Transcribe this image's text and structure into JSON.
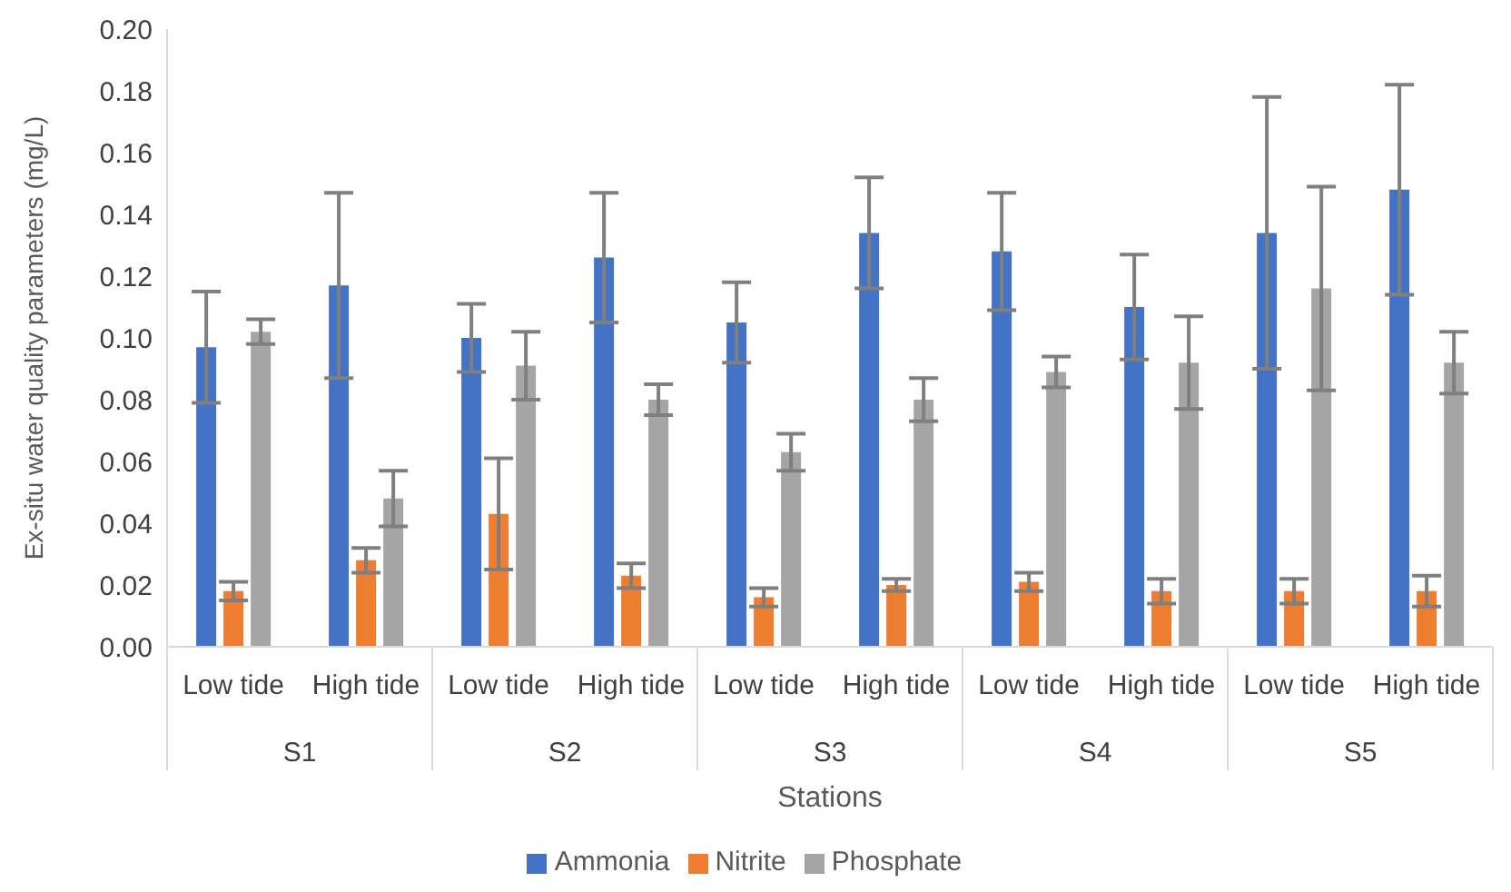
{
  "chart_data": {
    "type": "bar",
    "xlabel": "Stations",
    "ylabel": "Ex-situ water quality parameters  (mg/L)",
    "categories": [
      "Low tide",
      "High tide",
      "Low tide",
      "High tide",
      "Low tide",
      "High tide",
      "Low tide",
      "High tide",
      "Low tide",
      "High tide"
    ],
    "annotations": [
      "S1",
      "S2",
      "S3",
      "S4",
      "S5"
    ],
    "series": [
      {
        "name": "Ammonia",
        "color": "#4472c4",
        "values": [
          0.097,
          0.117,
          0.1,
          0.126,
          0.105,
          0.134,
          0.128,
          0.11,
          0.134,
          0.148
        ],
        "errors": [
          0.018,
          0.03,
          0.011,
          0.021,
          0.013,
          0.018,
          0.019,
          0.017,
          0.044,
          0.034
        ]
      },
      {
        "name": "Nitrite",
        "color": "#ed7d31",
        "values": [
          0.018,
          0.028,
          0.043,
          0.023,
          0.016,
          0.02,
          0.021,
          0.018,
          0.018,
          0.018
        ],
        "errors": [
          0.003,
          0.004,
          0.018,
          0.004,
          0.003,
          0.002,
          0.003,
          0.004,
          0.004,
          0.005
        ]
      },
      {
        "name": "Phosphate",
        "color": "#a5a5a5",
        "values": [
          0.102,
          0.048,
          0.091,
          0.08,
          0.063,
          0.08,
          0.089,
          0.092,
          0.116,
          0.092
        ],
        "errors": [
          0.004,
          0.009,
          0.011,
          0.005,
          0.006,
          0.007,
          0.005,
          0.015,
          0.033,
          0.01
        ]
      }
    ],
    "ylim": [
      0,
      0.2
    ],
    "yticks": [
      {
        "value": 0,
        "label": "0.00"
      },
      {
        "value": 0.02,
        "label": "0.02"
      },
      {
        "value": 0.04,
        "label": "0.04"
      },
      {
        "value": 0.06,
        "label": "0.06"
      },
      {
        "value": 0.08,
        "label": "0.08"
      },
      {
        "value": 0.1,
        "label": "0.10"
      },
      {
        "value": 0.12,
        "label": "0.12"
      },
      {
        "value": 0.14,
        "label": "0.14"
      },
      {
        "value": 0.16,
        "label": "0.16"
      },
      {
        "value": 0.18,
        "label": "0.18"
      },
      {
        "value": 0.2,
        "label": "0.20"
      }
    ],
    "grid": false,
    "legend": "bottom"
  }
}
